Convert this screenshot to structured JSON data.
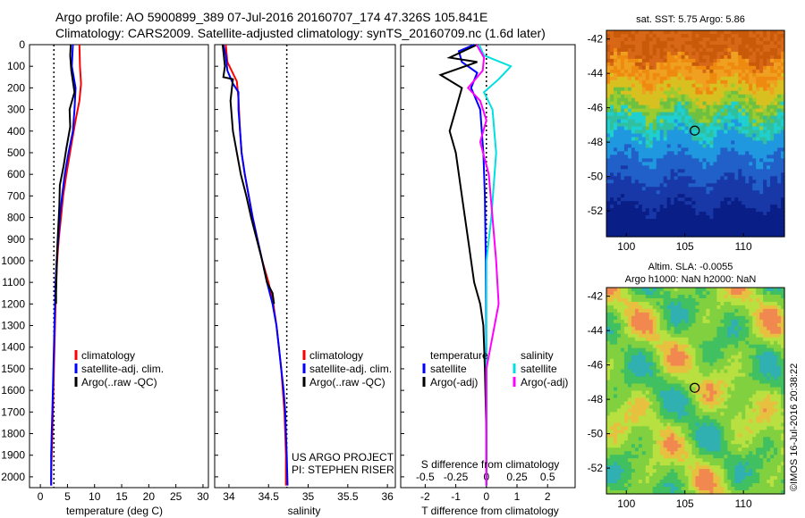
{
  "header": {
    "line1": "Argo profile: AO 5900899_389 07-Jul-2016 20160707_174 47.326S 105.841E",
    "line2": "Climatology: CARS2009. Satellite-adjusted climatology: synTS_20160709.nc (1.6d later)"
  },
  "colors": {
    "climatology": "#ff0000",
    "satellite": "#0000ff",
    "argo": "#000000",
    "sal_satellite": "#00e0e0",
    "sal_argo": "#ff00ff"
  },
  "depth_axis": {
    "ticks": [
      0,
      100,
      200,
      300,
      400,
      500,
      600,
      700,
      800,
      900,
      1000,
      1100,
      1200,
      1300,
      1400,
      1500,
      1600,
      1700,
      1800,
      1900,
      2000
    ],
    "ylim": [
      0,
      2050
    ]
  },
  "panel_temperature": {
    "xlabel": "temperature (deg C)",
    "xticks": [
      0,
      5,
      10,
      15,
      20,
      25,
      30
    ],
    "xlim": [
      -2,
      31
    ],
    "ref_line_x": 2.5,
    "legend": [
      "climatology",
      "satellite-adj. clim.",
      "Argo(..raw -QC)"
    ],
    "series": {
      "climatology": [
        [
          7.2,
          0
        ],
        [
          7.3,
          100
        ],
        [
          7.5,
          180
        ],
        [
          7.2,
          260
        ],
        [
          6.5,
          350
        ],
        [
          5.8,
          450
        ],
        [
          4.8,
          600
        ],
        [
          4.2,
          700
        ],
        [
          3.8,
          800
        ],
        [
          3.4,
          900
        ],
        [
          3.1,
          1000
        ],
        [
          2.9,
          1100
        ],
        [
          2.8,
          1200
        ],
        [
          2.7,
          1300
        ],
        [
          2.6,
          1400
        ],
        [
          2.5,
          1500
        ],
        [
          2.4,
          1600
        ],
        [
          2.3,
          1700
        ],
        [
          2.2,
          1800
        ],
        [
          2.1,
          1900
        ],
        [
          2.0,
          2000
        ],
        [
          2.0,
          2040
        ]
      ],
      "satellite": [
        [
          6.0,
          0
        ],
        [
          5.8,
          100
        ],
        [
          6.5,
          200
        ],
        [
          6.3,
          300
        ],
        [
          6.0,
          400
        ],
        [
          5.2,
          500
        ],
        [
          4.5,
          600
        ],
        [
          4.0,
          700
        ],
        [
          3.6,
          800
        ],
        [
          3.3,
          900
        ],
        [
          3.0,
          1000
        ],
        [
          2.8,
          1100
        ],
        [
          2.7,
          1200
        ],
        [
          2.6,
          1300
        ],
        [
          2.5,
          1400
        ],
        [
          2.4,
          1500
        ],
        [
          2.3,
          1600
        ],
        [
          2.2,
          1700
        ],
        [
          2.1,
          1800
        ],
        [
          2.0,
          1900
        ],
        [
          2.0,
          2040
        ]
      ],
      "argo": [
        [
          5.6,
          0
        ],
        [
          5.5,
          50
        ],
        [
          5.7,
          120
        ],
        [
          6.3,
          220
        ],
        [
          5.4,
          300
        ],
        [
          5.5,
          380
        ],
        [
          4.8,
          480
        ],
        [
          4.3,
          560
        ],
        [
          3.6,
          650
        ],
        [
          3.5,
          750
        ],
        [
          3.3,
          850
        ],
        [
          3.1,
          950
        ],
        [
          3.0,
          1050
        ],
        [
          2.9,
          1150
        ],
        [
          2.9,
          1200
        ]
      ]
    }
  },
  "panel_salinity": {
    "xlabel": "salinity",
    "xticks": [
      "34",
      "34.5",
      "35",
      "35.5",
      "36"
    ],
    "xtick_values": [
      34,
      34.5,
      35,
      35.5,
      36
    ],
    "xlim": [
      33.82,
      36.1
    ],
    "ref_line_x": 34.73,
    "legend": [
      "climatology",
      "satellite-adj. clim.",
      "Argo(..raw -QC)"
    ],
    "credit1": "US ARGO PROJECT",
    "credit2": "PI: STEPHEN RISER",
    "series": {
      "climatology": [
        [
          33.96,
          0
        ],
        [
          33.98,
          80
        ],
        [
          34.1,
          170
        ],
        [
          34.12,
          250
        ],
        [
          34.14,
          400
        ],
        [
          34.16,
          500
        ],
        [
          34.2,
          600
        ],
        [
          34.25,
          700
        ],
        [
          34.3,
          800
        ],
        [
          34.36,
          900
        ],
        [
          34.42,
          1000
        ],
        [
          34.5,
          1100
        ],
        [
          34.56,
          1200
        ],
        [
          34.6,
          1300
        ],
        [
          34.63,
          1400
        ],
        [
          34.66,
          1500
        ],
        [
          34.68,
          1600
        ],
        [
          34.7,
          1700
        ],
        [
          34.71,
          1800
        ],
        [
          34.72,
          1900
        ],
        [
          34.72,
          2040
        ]
      ],
      "satellite": [
        [
          33.93,
          0
        ],
        [
          33.96,
          50
        ],
        [
          33.98,
          120
        ],
        [
          34.05,
          180
        ],
        [
          34.12,
          220
        ],
        [
          34.12,
          300
        ],
        [
          34.14,
          400
        ],
        [
          34.16,
          500
        ],
        [
          34.2,
          600
        ],
        [
          34.25,
          700
        ],
        [
          34.3,
          800
        ],
        [
          34.36,
          900
        ],
        [
          34.42,
          1000
        ],
        [
          34.48,
          1100
        ],
        [
          34.55,
          1200
        ],
        [
          34.6,
          1300
        ],
        [
          34.63,
          1400
        ],
        [
          34.66,
          1500
        ],
        [
          34.69,
          1600
        ],
        [
          34.71,
          1700
        ],
        [
          34.72,
          1800
        ],
        [
          34.73,
          1900
        ],
        [
          34.74,
          2040
        ]
      ],
      "argo": [
        [
          33.92,
          0
        ],
        [
          33.95,
          100
        ],
        [
          33.93,
          150
        ],
        [
          34.05,
          160
        ],
        [
          34.02,
          260
        ],
        [
          34.05,
          400
        ],
        [
          34.1,
          500
        ],
        [
          34.15,
          600
        ],
        [
          34.22,
          700
        ],
        [
          34.28,
          800
        ],
        [
          34.35,
          900
        ],
        [
          34.42,
          1000
        ],
        [
          34.48,
          1100
        ],
        [
          34.55,
          1150
        ],
        [
          34.57,
          1200
        ]
      ]
    }
  },
  "panel_difference": {
    "xlabel": "T difference from climatology",
    "top_label": "S difference from climatology",
    "t_ticks": [
      -2,
      -1,
      0,
      1,
      2
    ],
    "t_xlim": [
      -2.8,
      2.9
    ],
    "s_ticks": [
      "-0.5",
      "-0.25",
      "0",
      "0.25",
      "0.5"
    ],
    "legend_t_title": "temperature",
    "legend_s_title": "salinity",
    "legend_t": [
      "satellite",
      "Argo(-adj)"
    ],
    "legend_s": [
      "satellite",
      "Argo(-adj)"
    ],
    "series": {
      "t_satellite": [
        [
          -0.4,
          0
        ],
        [
          -0.9,
          30
        ],
        [
          -0.8,
          80
        ],
        [
          -0.3,
          130
        ],
        [
          -0.5,
          200
        ],
        [
          -0.2,
          300
        ],
        [
          -0.1,
          500
        ],
        [
          -0.05,
          700
        ],
        [
          -0.02,
          1000
        ],
        [
          0,
          1500
        ],
        [
          0,
          2040
        ]
      ],
      "t_argo": [
        [
          -0.3,
          0
        ],
        [
          -1.2,
          60
        ],
        [
          -0.3,
          80
        ],
        [
          -1.5,
          140
        ],
        [
          -0.8,
          200
        ],
        [
          -1.0,
          300
        ],
        [
          -1.2,
          400
        ],
        [
          -1.0,
          500
        ],
        [
          -0.8,
          700
        ],
        [
          -0.6,
          900
        ],
        [
          -0.4,
          1100
        ],
        [
          -0.2,
          1200
        ],
        [
          -0.1,
          1300
        ],
        [
          -0.05,
          1500
        ],
        [
          0,
          1800
        ],
        [
          0,
          2040
        ]
      ],
      "s_satellite": [
        [
          -0.06,
          0
        ],
        [
          -0.02,
          50
        ],
        [
          0.2,
          100
        ],
        [
          0.1,
          160
        ],
        [
          -0.02,
          220
        ],
        [
          0.05,
          300
        ],
        [
          0.08,
          500
        ],
        [
          0.04,
          800
        ],
        [
          0.0,
          1000
        ],
        [
          0.0,
          2040
        ]
      ],
      "s_argo": [
        [
          -0.08,
          0
        ],
        [
          -0.02,
          60
        ],
        [
          -0.03,
          120
        ],
        [
          -0.15,
          200
        ],
        [
          -0.05,
          260
        ],
        [
          0.0,
          350
        ],
        [
          -0.05,
          450
        ],
        [
          0.02,
          600
        ],
        [
          0.05,
          800
        ],
        [
          0.08,
          1000
        ],
        [
          0.1,
          1200
        ],
        [
          0.0,
          1500
        ],
        [
          0.0,
          2040
        ]
      ]
    }
  },
  "map_sst": {
    "title": "sat. SST: 5.75 Argo: 5.86",
    "yticks": [
      "-42",
      "-44",
      "-46",
      "-48",
      "-50",
      "-52"
    ],
    "xticks": [
      "100",
      "105",
      "110"
    ],
    "lon_range": [
      98.3,
      113.5
    ],
    "lat_range": [
      -53.5,
      -41.5
    ],
    "marker": {
      "lon": 105.84,
      "lat": -47.33
    }
  },
  "map_sla": {
    "title1": "Altim. SLA: -0.0055",
    "title2": "Argo h1000: NaN h2000: NaN",
    "yticks": [
      "-42",
      "-44",
      "-46",
      "-48",
      "-50",
      "-52"
    ],
    "xticks": [
      "100",
      "105",
      "110"
    ],
    "lon_range": [
      98.3,
      113.5
    ],
    "lat_range": [
      -53.5,
      -41.5
    ],
    "marker": {
      "lon": 105.84,
      "lat": -47.33
    }
  },
  "footer_credit": "©IMOS 16-Jul-2016 20:38:22"
}
